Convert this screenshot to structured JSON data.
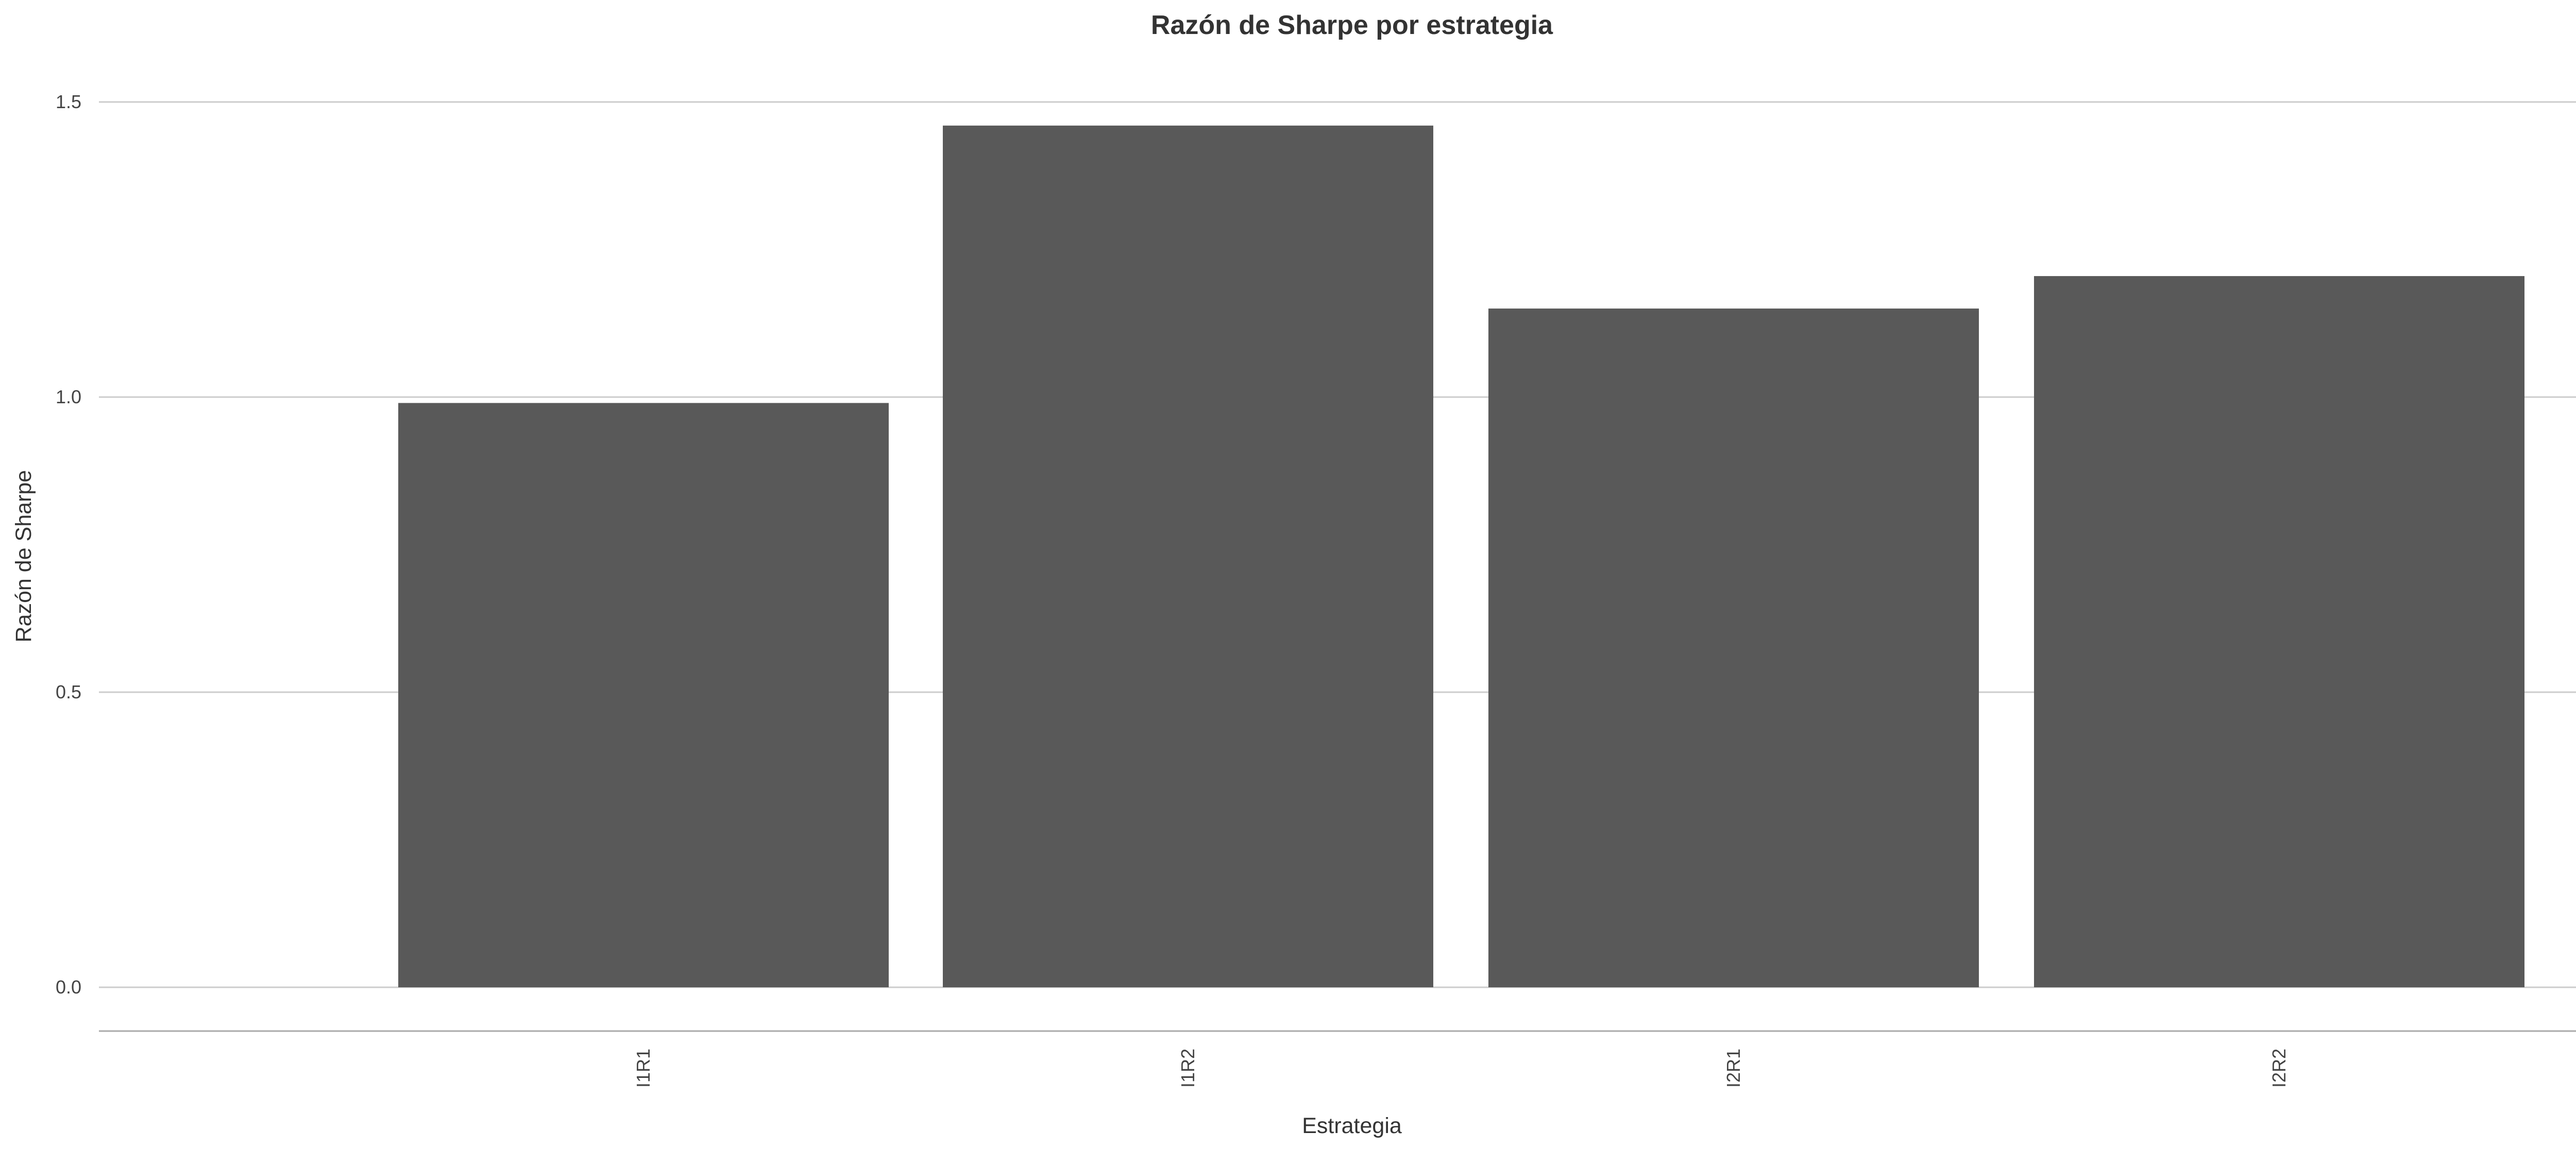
{
  "chart_data": {
    "type": "bar",
    "title": "Razón de Sharpe por estrategia",
    "xlabel": "Estrategia",
    "ylabel": "Razón de Sharpe",
    "categories": [
      "I1R1",
      "I1R2",
      "I2R1",
      "I2R2"
    ],
    "values": [
      0.99,
      1.46,
      1.15,
      1.205
    ],
    "ylim": [
      -0.075,
      1.55
    ],
    "yticks": [
      0.0,
      0.5,
      1.0,
      1.5
    ],
    "ytick_labels": [
      "0.0",
      "0.5",
      "1.0",
      "1.5"
    ],
    "grid": "horizontal",
    "legend": "none",
    "bar_color": "#595959"
  }
}
